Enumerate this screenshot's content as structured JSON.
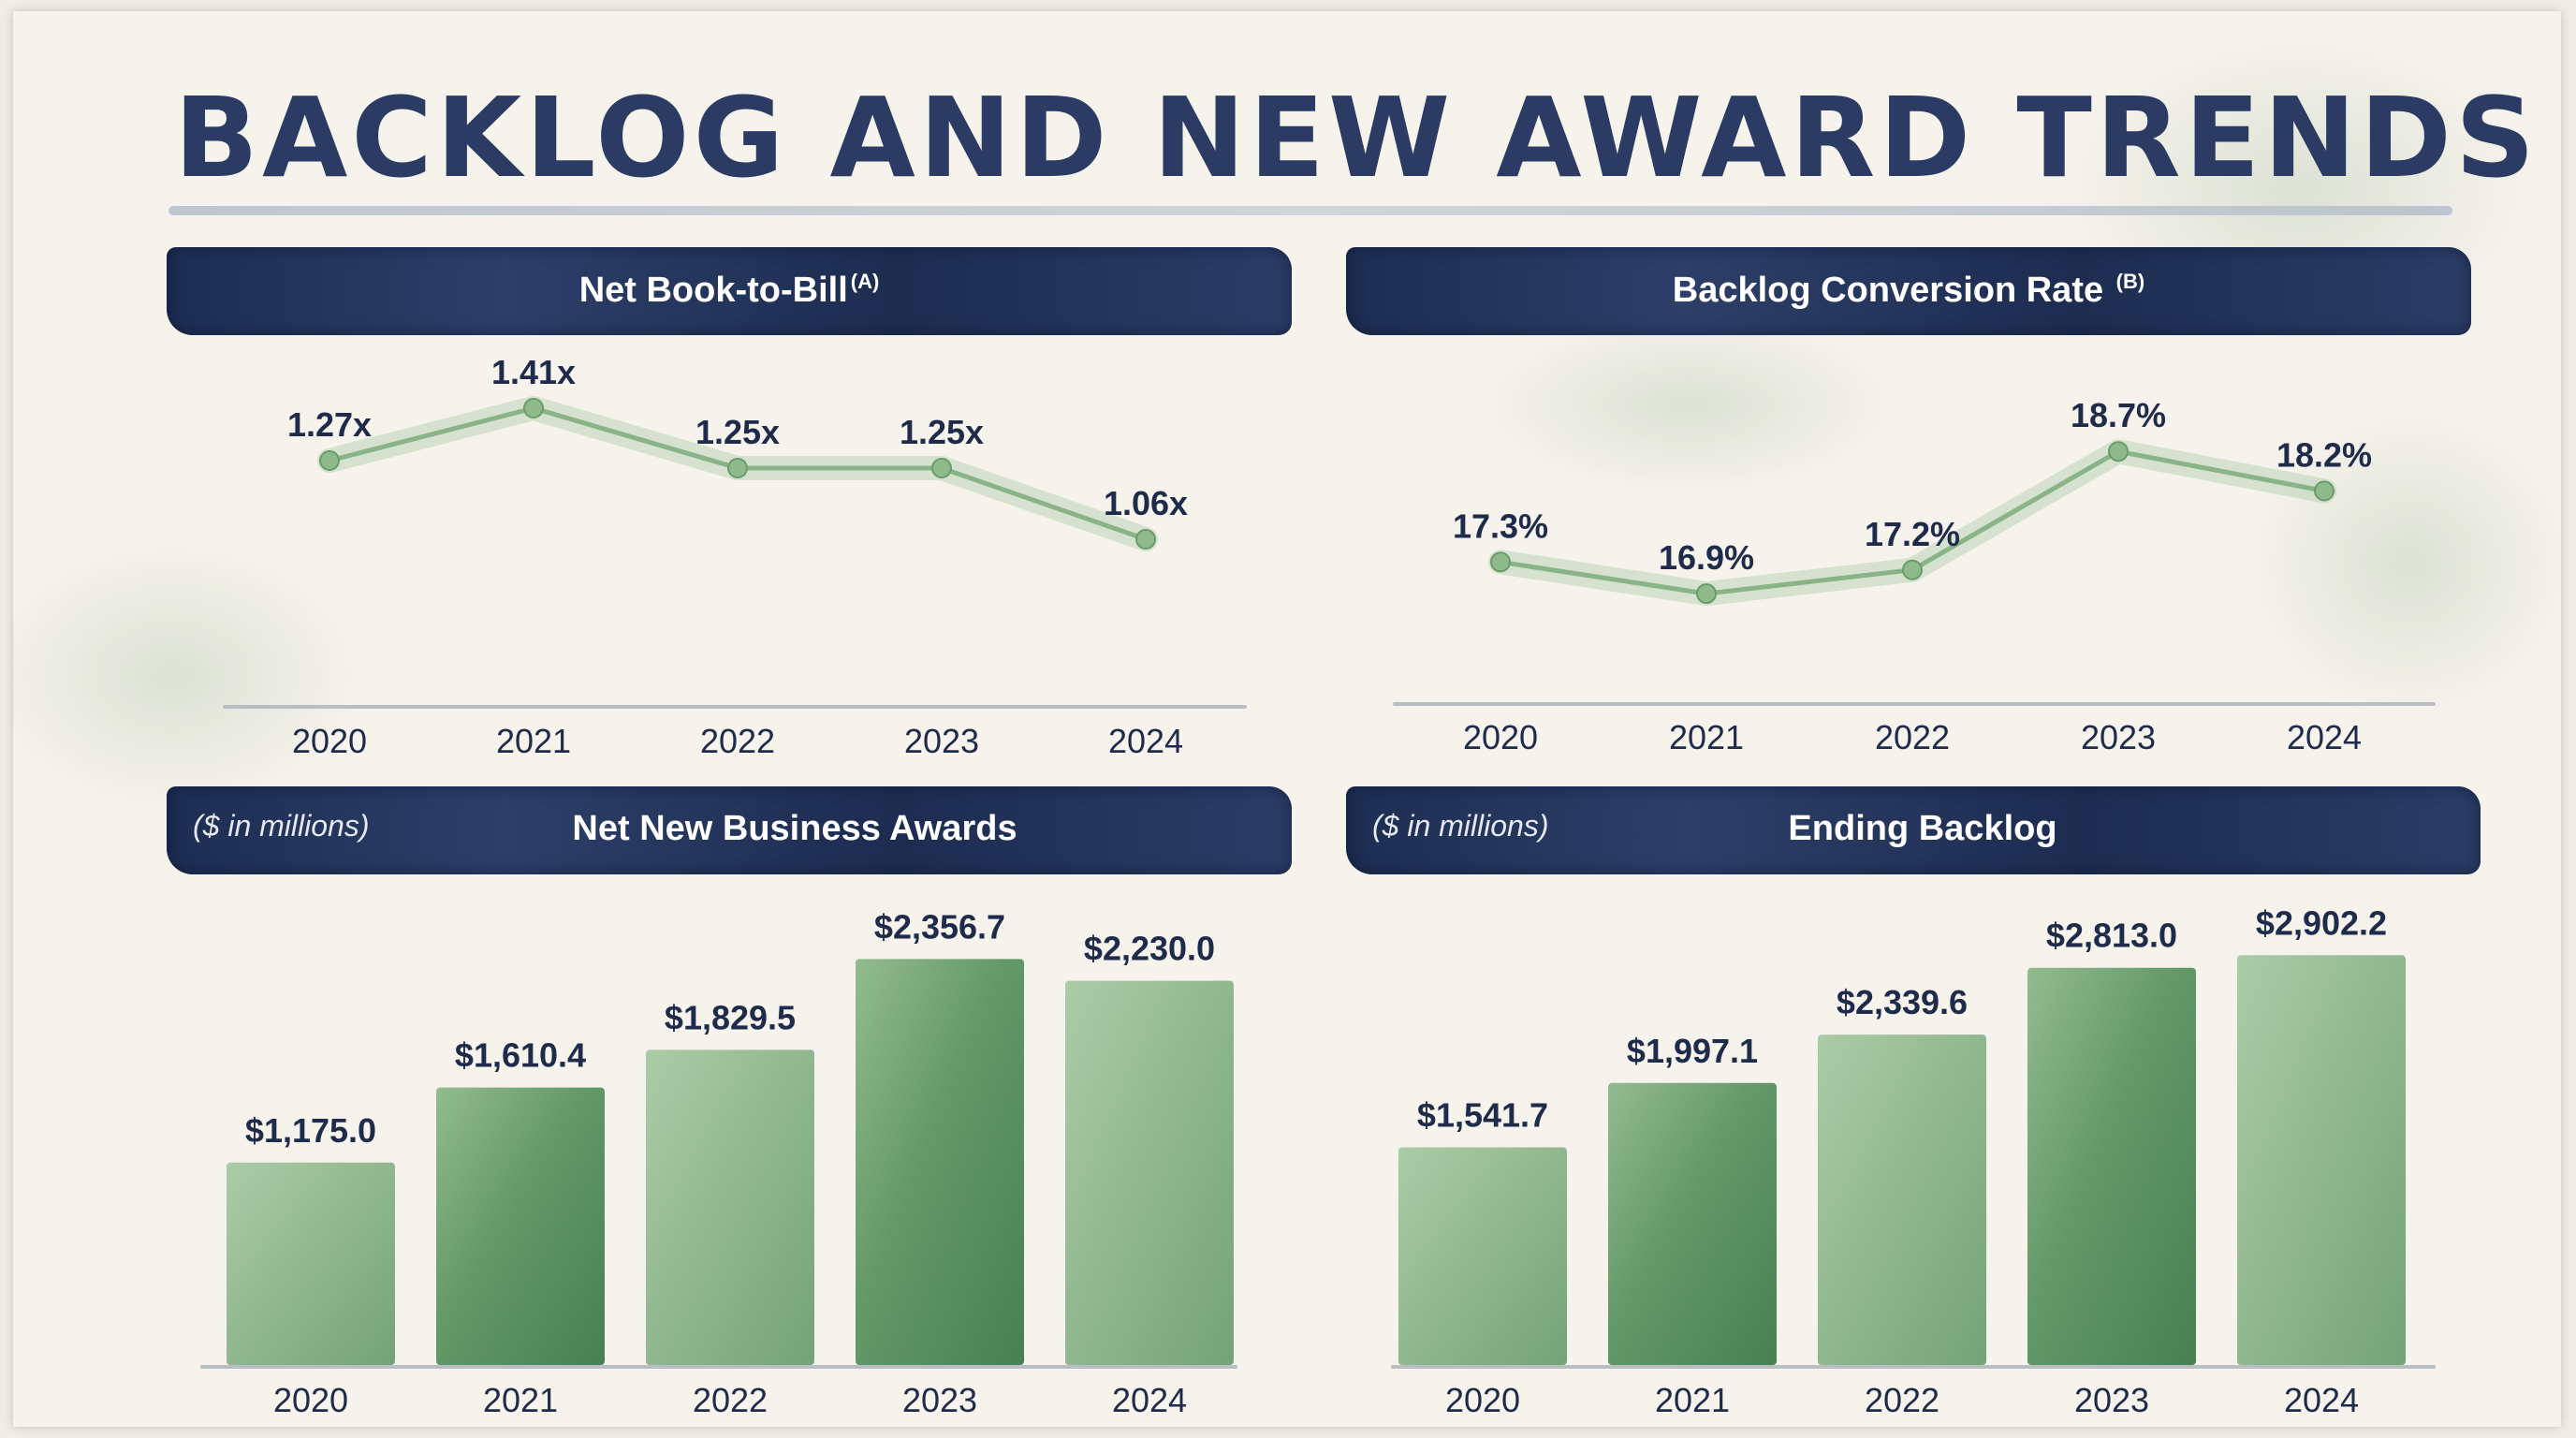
{
  "title": "BACKLOG AND NEW AWARD TRENDS",
  "colors": {
    "banner": "#1e2e54",
    "bar_green": "#5f9663",
    "line_green": "#9cc39a",
    "text_navy": "#1f2b4a"
  },
  "panels": {
    "book_to_bill": {
      "title": "Net Book-to-Bill",
      "footnote": "(A)",
      "note": ""
    },
    "conversion": {
      "title": "Backlog Conversion Rate ",
      "footnote": "(B)",
      "note": ""
    },
    "awards": {
      "title": "Net New Business Awards",
      "note": "($ in millions)"
    },
    "backlog": {
      "title": "Ending Backlog",
      "note": "($ in millions)"
    }
  },
  "chart_data": [
    {
      "id": "book_to_bill",
      "type": "line",
      "title": "Net Book-to-Bill",
      "categories": [
        "2020",
        "2021",
        "2022",
        "2023",
        "2024"
      ],
      "values": [
        1.27,
        1.41,
        1.25,
        1.25,
        1.06
      ],
      "labels": [
        "1.27x",
        "1.41x",
        "1.25x",
        "1.25x",
        "1.06x"
      ],
      "ylim": [
        0.9,
        1.5
      ]
    },
    {
      "id": "conversion",
      "type": "line",
      "title": "Backlog Conversion Rate",
      "categories": [
        "2020",
        "2021",
        "2022",
        "2023",
        "2024"
      ],
      "values": [
        17.3,
        16.9,
        17.2,
        18.7,
        18.2
      ],
      "labels": [
        "17.3%",
        "16.9%",
        "17.2%",
        "18.7%",
        "18.2%"
      ],
      "ylim": [
        16.0,
        19.2
      ]
    },
    {
      "id": "awards",
      "type": "bar",
      "title": "Net New Business Awards",
      "unit": "$ in millions",
      "categories": [
        "2020",
        "2021",
        "2022",
        "2023",
        "2024"
      ],
      "values": [
        1175.0,
        1610.4,
        1829.5,
        2356.7,
        2230.0
      ],
      "labels": [
        "$1,175.0",
        "$1,610.4",
        "$1,829.5",
        "$2,356.7",
        "$2,230.0"
      ],
      "ylim": [
        0,
        2500
      ]
    },
    {
      "id": "backlog",
      "type": "bar",
      "title": "Ending Backlog",
      "unit": "$ in millions",
      "categories": [
        "2020",
        "2021",
        "2022",
        "2023",
        "2024"
      ],
      "values": [
        1541.7,
        1997.1,
        2339.6,
        2813.0,
        2902.2
      ],
      "labels": [
        "$1,541.7",
        "$1,997.1",
        "$2,339.6",
        "$2,813.0",
        "$2,902.2"
      ],
      "ylim": [
        0,
        3050
      ]
    }
  ]
}
